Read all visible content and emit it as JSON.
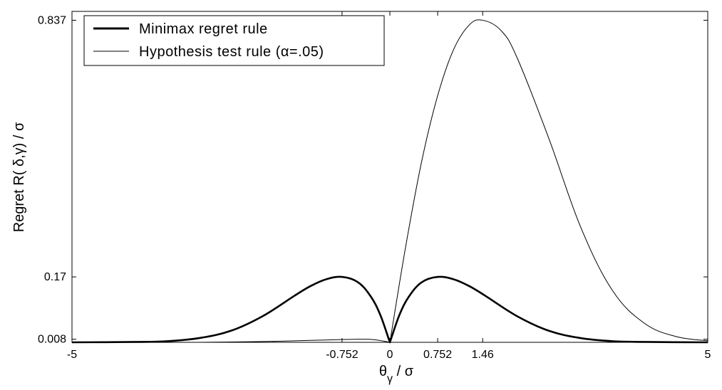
{
  "chart_data": {
    "type": "line",
    "title": "",
    "xlabel_main": "θ",
    "xlabel_sub": "γ",
    "xlabel_tail": " / σ",
    "ylabel": "Regret R( δ,γ) / σ",
    "xlim": [
      -5,
      5
    ],
    "ylim": [
      0,
      0.86
    ],
    "grid": false,
    "legend_position": "top-left",
    "x_ticks": [
      {
        "value": -5,
        "label": "-5"
      },
      {
        "value": -0.752,
        "label": "-0.752"
      },
      {
        "value": 0,
        "label": "0"
      },
      {
        "value": 0.752,
        "label": "0.752"
      },
      {
        "value": 1.46,
        "label": "1.46"
      },
      {
        "value": 5,
        "label": "5"
      }
    ],
    "y_ticks": [
      {
        "value": 0.008,
        "label": "0.008"
      },
      {
        "value": 0.17,
        "label": "0.17"
      },
      {
        "value": 0.837,
        "label": "0.837"
      }
    ],
    "series": [
      {
        "name": "Minimax regret rule",
        "color": "#000000",
        "line_weight": "thick",
        "x": [
          -5,
          -4,
          -3.5,
          -3,
          -2.5,
          -2,
          -1.5,
          -1.25,
          -1,
          -0.752,
          -0.5,
          -0.3,
          -0.15,
          0,
          0.15,
          0.3,
          0.5,
          0.752,
          1,
          1.25,
          1.5,
          2,
          2.5,
          3,
          3.5,
          4,
          5
        ],
        "y": [
          0.0,
          0.001,
          0.003,
          0.011,
          0.03,
          0.068,
          0.121,
          0.146,
          0.164,
          0.17,
          0.156,
          0.119,
          0.071,
          0.0,
          0.071,
          0.119,
          0.156,
          0.17,
          0.164,
          0.146,
          0.121,
          0.068,
          0.03,
          0.011,
          0.003,
          0.001,
          0.0
        ]
      },
      {
        "name": "Hypothesis test rule (α=.05)",
        "color": "#000000",
        "line_weight": "thin",
        "x": [
          -5,
          -3,
          -2,
          -1.5,
          -1,
          -0.5,
          -0.25,
          0,
          0.25,
          0.5,
          0.75,
          1,
          1.25,
          1.46,
          1.75,
          2,
          2.5,
          3,
          3.5,
          4,
          4.5,
          5
        ],
        "y": [
          0.0,
          0.0,
          0.002,
          0.004,
          0.006,
          0.008,
          0.007,
          0.0,
          0.25,
          0.47,
          0.64,
          0.76,
          0.825,
          0.837,
          0.81,
          0.74,
          0.53,
          0.3,
          0.135,
          0.05,
          0.015,
          0.004
        ]
      }
    ]
  }
}
